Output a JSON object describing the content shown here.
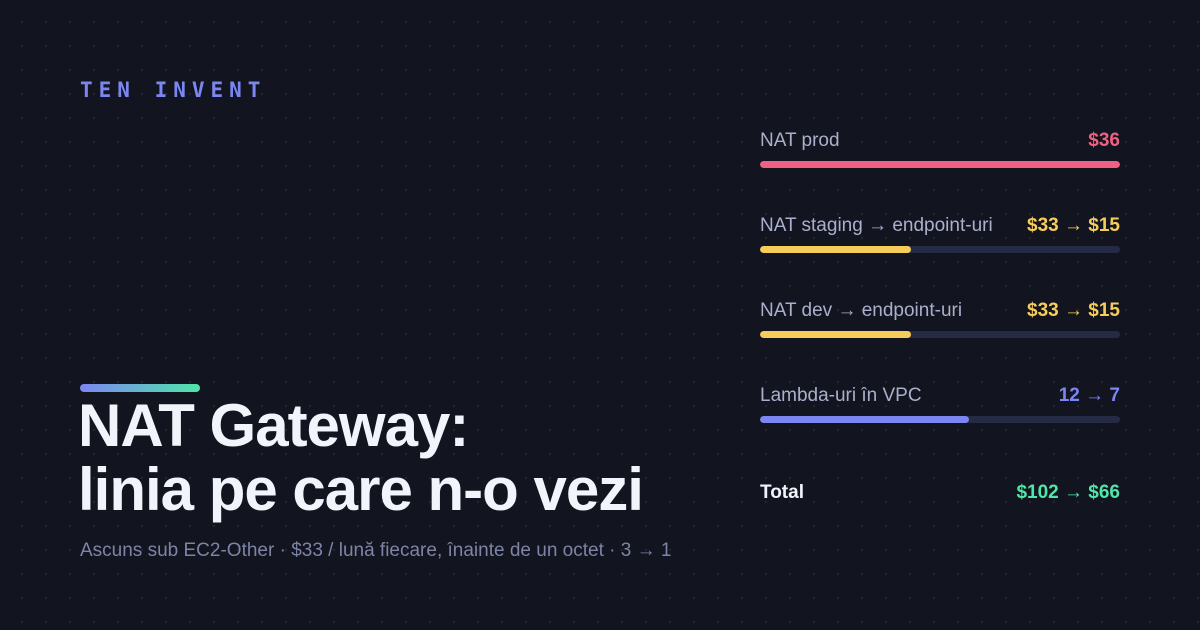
{
  "brand": "TEN INVENT",
  "headline": {
    "line1": "NAT Gateway:",
    "line2": "linia pe care n-o vezi"
  },
  "subtitle": "Ascuns sub EC2-Other · $33 / lună fiecare, înainte de un octet · 3 → 1",
  "colors": {
    "background": "#12141f",
    "brand": "#7c86f0",
    "red": "#f06080",
    "yellow": "#f7cd5a",
    "blue": "#7b86f2",
    "green": "#4fe6a8",
    "track": "#262b45"
  },
  "rows": [
    {
      "label": "NAT prod",
      "value": "$36",
      "color": "#f06080",
      "fill": 1.0
    },
    {
      "label": "NAT staging → endpoint-uri",
      "value": "$33 → $15",
      "color": "#f7cd5a",
      "fill": 0.42
    },
    {
      "label": "NAT dev → endpoint-uri",
      "value": "$33 → $15",
      "color": "#f7cd5a",
      "fill": 0.42
    },
    {
      "label": "Lambda-uri în VPC",
      "value": "12 → 7",
      "color": "#7b86f2",
      "fill": 0.58
    }
  ],
  "total": {
    "label": "Total",
    "value": "$102 → $66"
  }
}
